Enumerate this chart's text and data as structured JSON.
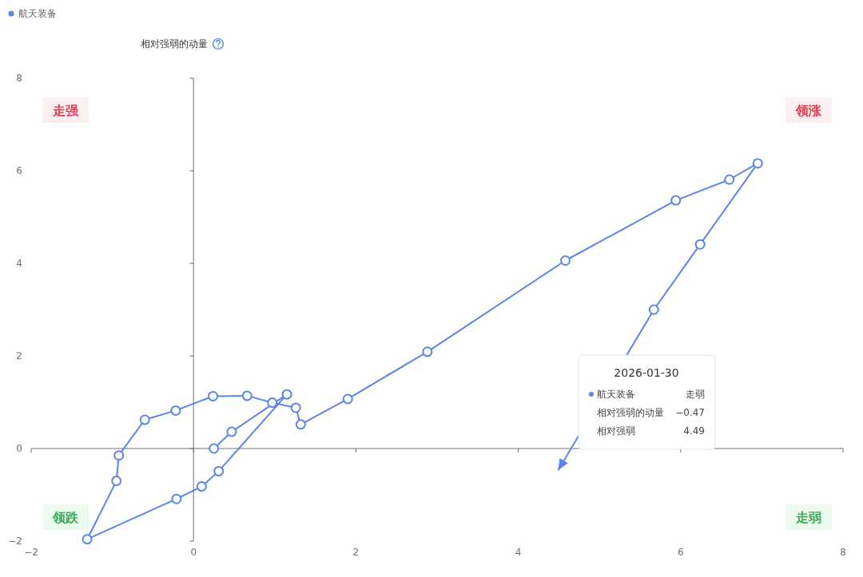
{
  "chart_data": {
    "type": "line",
    "ylabel": "相对强弱的动量",
    "legend": "top left",
    "marker": "circle",
    "x": [
      0.25,
      0.47,
      1.15,
      0.31,
      0.1,
      -0.21,
      -1.31,
      -0.95,
      -0.92,
      -0.6,
      -0.22,
      0.24,
      0.66,
      0.97,
      1.26,
      1.32,
      1.9,
      2.88,
      4.58,
      5.94,
      6.6,
      6.95,
      6.24,
      5.67,
      4.49
    ],
    "series": [
      {
        "name": "航天装备",
        "color": "#5b83ec",
        "values": [
          0.0,
          0.36,
          1.17,
          -0.49,
          -0.82,
          -1.09,
          -1.96,
          -0.7,
          -0.15,
          0.62,
          0.82,
          1.13,
          1.14,
          0.99,
          0.88,
          0.52,
          1.07,
          2.09,
          4.06,
          5.36,
          5.81,
          6.16,
          4.41,
          3.0,
          -0.47
        ]
      }
    ],
    "xlim": [
      -2,
      8
    ],
    "xticks": [
      -2,
      0,
      2,
      4,
      6,
      8
    ],
    "ylim": [
      -2,
      8
    ],
    "yticks": [
      -2,
      0,
      2,
      4,
      6,
      8
    ],
    "annotations": [
      "走强",
      "领涨",
      "领跌",
      "走弱",
      "2026-01-30",
      "航天装备",
      "走弱",
      "相对强弱的动量",
      "−0.47",
      "相对强弱",
      "4.49"
    ]
  }
}
